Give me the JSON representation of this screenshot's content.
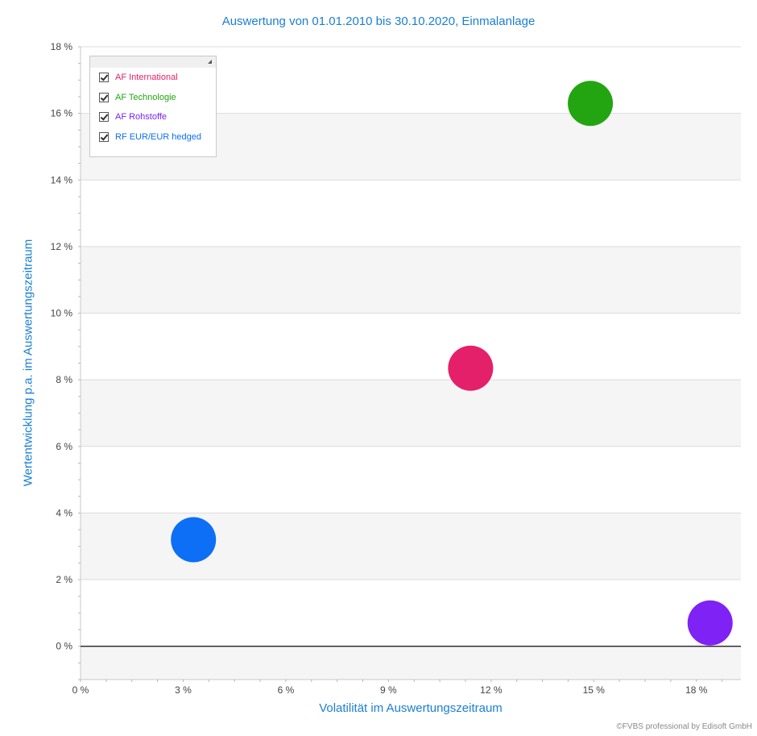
{
  "colors": {
    "title": "#1a7fd4",
    "axis_text": "#444444",
    "band": "#f5f5f5",
    "grid": "#dcdcdc",
    "zero_line": "#222222"
  },
  "footer": {
    "copyright": "©FVBS professional by Edisoft GmbH"
  },
  "chart_data": {
    "type": "scatter",
    "title": "Auswertung von 01.01.2010 bis 30.10.2020, Einmalanlage",
    "xlabel": "Volatilität im Auswertungszeitraum",
    "ylabel": "Wertentwicklung p.a. im Auswertungszeitraum",
    "xlim": [
      0,
      19.3
    ],
    "ylim": [
      -1,
      18
    ],
    "x_ticks": [
      0,
      3,
      6,
      9,
      12,
      15,
      18
    ],
    "x_tick_labels": [
      "0 %",
      "3 %",
      "6 %",
      "9 %",
      "12 %",
      "15 %",
      "18 %"
    ],
    "y_ticks": [
      0,
      2,
      4,
      6,
      8,
      10,
      12,
      14,
      16,
      18
    ],
    "y_tick_labels": [
      "0 %",
      "2 %",
      "4 %",
      "6 %",
      "8 %",
      "10 %",
      "12 %",
      "14 %",
      "16 %",
      "18 %"
    ],
    "grid": true,
    "legend_position": "top-left",
    "series": [
      {
        "name": "AF International",
        "color": "#e5206a",
        "x": 11.4,
        "y": 8.35,
        "checked": true
      },
      {
        "name": "AF Technologie",
        "color": "#22a511",
        "x": 14.9,
        "y": 16.3,
        "checked": true
      },
      {
        "name": "AF Rohstoffe",
        "color": "#7e22f5",
        "x": 18.4,
        "y": 0.7,
        "checked": true
      },
      {
        "name": "RF EUR/EUR hedged",
        "color": "#0c6ff5",
        "x": 3.3,
        "y": 3.2,
        "checked": true
      }
    ]
  }
}
